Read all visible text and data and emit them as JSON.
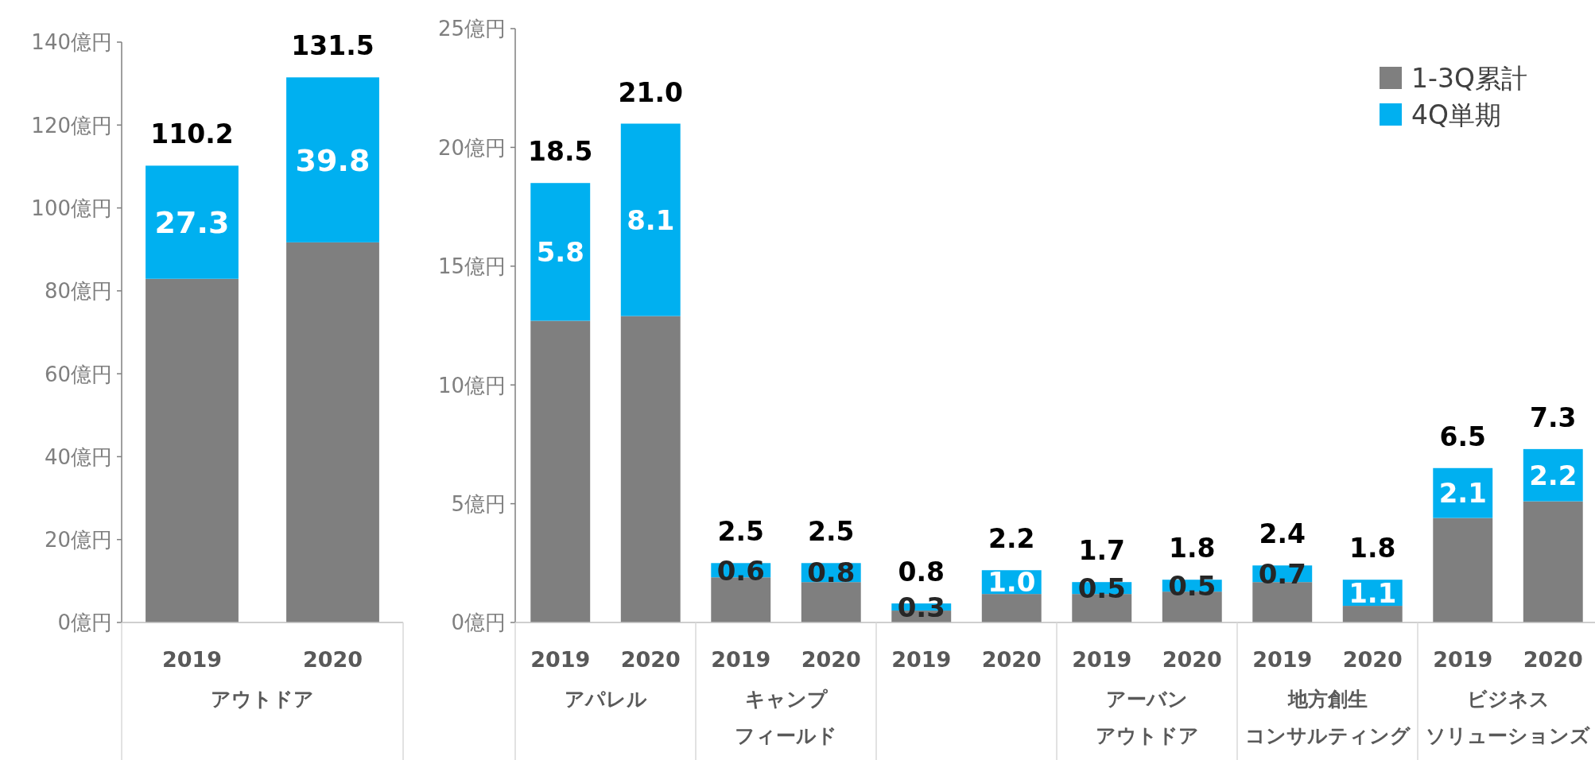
{
  "chart_data": [
    {
      "type": "bar",
      "stacked": true,
      "categories": [
        "2019",
        "2020"
      ],
      "annotations": [
        "アウトドア"
      ],
      "series": [
        {
          "color": "#7f7f7f",
          "values": [
            82.9,
            91.7
          ]
        },
        {
          "color": "#00b0f0",
          "values": [
            27.3,
            39.8
          ],
          "value_labels": [
            "27.3",
            "39.8"
          ]
        }
      ],
      "totals": [
        "110.2",
        "131.5"
      ],
      "ylim": [
        0,
        140
      ],
      "yticks": [
        {
          "value": 0,
          "label": "0億円"
        },
        {
          "value": 20,
          "label": "20億円"
        },
        {
          "value": 40,
          "label": "40億円"
        },
        {
          "value": 60,
          "label": "60億円"
        },
        {
          "value": 80,
          "label": "80億円"
        },
        {
          "value": 100,
          "label": "100億円"
        },
        {
          "value": 120,
          "label": "120億円"
        },
        {
          "value": 140,
          "label": "140億円"
        }
      ],
      "grid": false
    },
    {
      "type": "bar",
      "stacked": true,
      "categories": [
        "2019",
        "2020",
        "2019",
        "2020",
        "2019",
        "2020",
        "2019",
        "2020",
        "2019",
        "2020",
        "2019",
        "2020"
      ],
      "annotations": [
        "アパレル",
        "キャンプフィールド",
        null,
        "アーバンアウトドア",
        "地方創生コンサルティング",
        "ビジネスソリューションズ"
      ],
      "series": [
        {
          "name": "1-3Q累計",
          "color": "#7f7f7f",
          "values": [
            12.7,
            12.9,
            1.9,
            1.7,
            0.5,
            1.2,
            1.2,
            1.3,
            1.7,
            0.7,
            4.4,
            5.1
          ]
        },
        {
          "name": "4Q単期",
          "color": "#00b0f0",
          "values": [
            5.8,
            8.1,
            0.6,
            0.8,
            0.3,
            1.0,
            0.5,
            0.5,
            0.7,
            1.1,
            2.1,
            2.2
          ],
          "value_labels": [
            "5.8",
            "8.1",
            "0.6",
            "0.8",
            "0.3",
            "1.0",
            "0.5",
            "0.5",
            "0.7",
            "1.1",
            "2.1",
            "2.2"
          ]
        }
      ],
      "totals": [
        "18.5",
        "21.0",
        "2.5",
        "2.5",
        "0.8",
        "2.2",
        "1.7",
        "1.8",
        "2.4",
        "1.8",
        "6.5",
        "7.3"
      ],
      "ylim": [
        0,
        25
      ],
      "yticks": [
        {
          "value": 0,
          "label": "0億円"
        },
        {
          "value": 5,
          "label": "5億円"
        },
        {
          "value": 10,
          "label": "10億円"
        },
        {
          "value": 15,
          "label": "15億円"
        },
        {
          "value": 20,
          "label": "20億円"
        },
        {
          "value": 25,
          "label": "25億円"
        }
      ],
      "grid": false,
      "legend": "top right"
    }
  ]
}
